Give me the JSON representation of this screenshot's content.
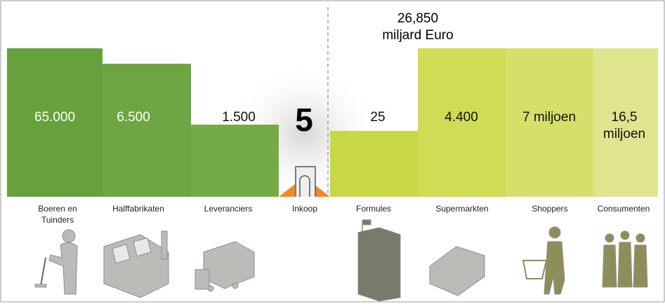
{
  "header": {
    "lines": [
      "26,850",
      "miljard Euro"
    ]
  },
  "columns": [
    {
      "value": [
        "65.000"
      ],
      "label": [
        "Boeren en",
        "Tuinders"
      ]
    },
    {
      "value": [
        "6.500"
      ],
      "label": [
        "Halffabrikaten"
      ]
    },
    {
      "value": [
        "1.500"
      ],
      "label": [
        "Leveranciers"
      ]
    },
    {
      "value": [
        "5"
      ],
      "label": [
        "Inkoop"
      ]
    },
    {
      "value": [
        "25"
      ],
      "label": [
        "Formules"
      ]
    },
    {
      "value": [
        "4.400"
      ],
      "label": [
        "Supermarkten"
      ]
    },
    {
      "value": [
        "7 miljoen"
      ],
      "label": [
        "Shoppers"
      ]
    },
    {
      "value": [
        "16,5",
        "miljoen"
      ],
      "label": [
        "Consumenten"
      ]
    }
  ]
}
